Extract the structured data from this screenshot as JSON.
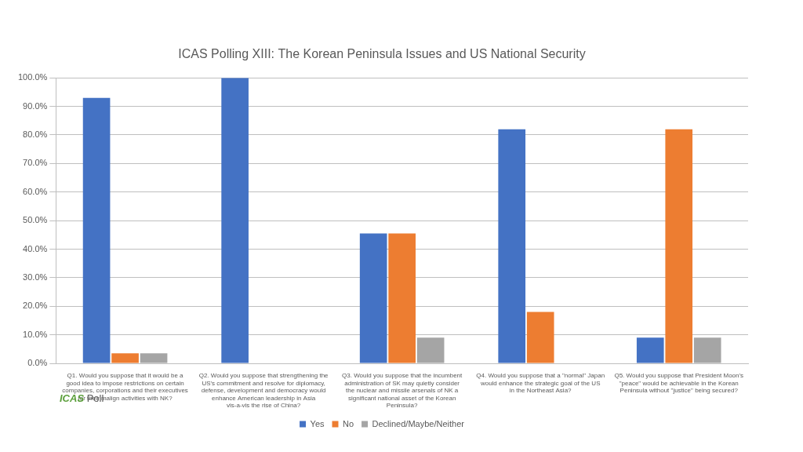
{
  "chart_data": {
    "type": "bar",
    "title": "ICAS Polling XIII: The Korean Peninsula Issues and US National Security",
    "categories": [
      "Q1. Would you suppose that it would be a good idea to impose restrictions on certain companies, corporations and their executives for their malign activities with NK?",
      "Q2. Would you suppose that strengthening the US's commitment and resolve for diplomacy, defense, development and democracy would enhance American leadership in Asia vis-a-vis the rise of China?",
      "Q3. Would you suppose that the incumbent administration of SK may quietly consider the nuclear and missile arsenals of NK a significant national asset of the Korean Peninsula?",
      "Q4. Would you suppose that a \"normal\" Japan would enhance the strategic goal of the US in the Northeast Asia?",
      "Q5. Would you suppose that President Moon's \"peace\" would be achievable in the Korean Peninsula without \"justice\" being secured?"
    ],
    "series": [
      {
        "name": "Yes",
        "color": "#4472c4",
        "values": [
          93,
          100,
          45.5,
          82,
          9
        ]
      },
      {
        "name": "No",
        "color": "#ed7d31",
        "values": [
          3.5,
          0,
          45.5,
          18,
          82
        ]
      },
      {
        "name": "Declined/Maybe/Neither",
        "color": "#a5a5a5",
        "values": [
          3.5,
          0,
          9,
          0,
          9
        ]
      }
    ],
    "ylim": [
      0,
      100
    ],
    "yticks": [
      {
        "value": 0,
        "label": "0.0%"
      },
      {
        "value": 10,
        "label": "10.0%"
      },
      {
        "value": 20,
        "label": "20.0%"
      },
      {
        "value": 30,
        "label": "30.0%"
      },
      {
        "value": 40,
        "label": "40.0%"
      },
      {
        "value": 50,
        "label": "50.0%"
      },
      {
        "value": 60,
        "label": "60.0%"
      },
      {
        "value": 70,
        "label": "70.0%"
      },
      {
        "value": 80,
        "label": "80.0%"
      },
      {
        "value": 90,
        "label": "90.0%"
      },
      {
        "value": 100,
        "label": "100.0%"
      }
    ],
    "grid": true,
    "legend": "bottom",
    "annotations": [
      "ICAS Poll"
    ]
  }
}
